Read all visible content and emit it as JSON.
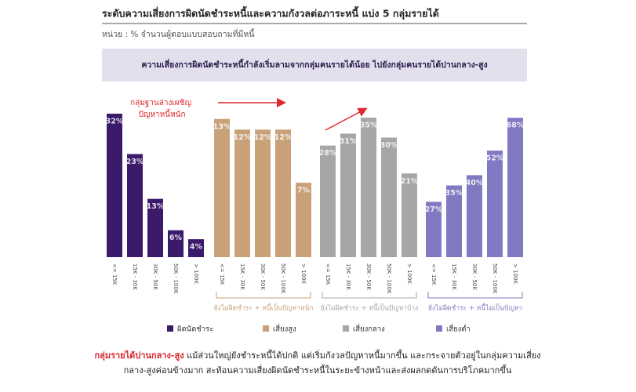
{
  "header": {
    "title": "ระดับความเสี่ยงการผิดนัดชำระหนี้และความกังวลต่อภาระหนี้  แบ่ง 5 กลุ่มรายได้",
    "unit": "หน่วย : % จำนวนผู้ตอบแบบสอบถามที่มีหนี้",
    "banner": "ความเสี่ยงการผิดนัดชำระหนี้กำลังเริ่มลามจากกลุ่มคนรายได้น้อย ไปยังกลุ่มคนรายได้ปานกลาง-สูง"
  },
  "chart_data": [
    {
      "type": "bar",
      "name": "ผิดนัดชำระ",
      "color": "#3b1a6b",
      "categories": [
        "<= 15K",
        "15K - 30K",
        "30K - 50K",
        "50K - 100K",
        "> 100K"
      ],
      "values": [
        32,
        23,
        13,
        6,
        4
      ],
      "value_labels": [
        "32%",
        "23%",
        "13%",
        "6%",
        "4%"
      ],
      "ylim": [
        0,
        32
      ],
      "annotation": "กลุ่มฐานล่างเผชิญ ปัญหาหนี้หนัก"
    },
    {
      "type": "bar",
      "name": "เสี่ยงสูง",
      "color": "#c9a179",
      "categories": [
        "<= 15K",
        "15K - 30K",
        "30K - 50K",
        "50K - 100K",
        "> 100K"
      ],
      "values": [
        13,
        12,
        12,
        12,
        7
      ],
      "value_labels": [
        "13%",
        "12%",
        "12%",
        "12%",
        "7%"
      ],
      "ylim": [
        0,
        13.5
      ],
      "bracket_label": "ยังไม่ผิดชำระ + หนี้เป็นปัญหาหนัก"
    },
    {
      "type": "bar",
      "name": "เสี่ยงกลาง",
      "color": "#a6a6a6",
      "categories": [
        "<= 15K",
        "15K - 30K",
        "30K - 50K",
        "50K - 100K",
        "> 100K"
      ],
      "values": [
        28,
        31,
        35,
        30,
        21
      ],
      "value_labels": [
        "28%",
        "31%",
        "35%",
        "30%",
        "21%"
      ],
      "ylim": [
        0,
        36
      ],
      "bracket_label": "ยังไม่ผิดชำระ + หนี้เป็นปัญหาบ้าง"
    },
    {
      "type": "bar",
      "name": "เสี่ยงต่ำ",
      "color": "#8179c2",
      "categories": [
        "<= 15K",
        "15K - 30K",
        "30K - 50K",
        "50K - 100K",
        "> 100K"
      ],
      "values": [
        27,
        35,
        40,
        52,
        68
      ],
      "value_labels": [
        "27%",
        "35%",
        "40%",
        "52%",
        "68%"
      ],
      "ylim": [
        0,
        70
      ],
      "bracket_label": "ยังไม่ผิดชำระ + หนี้ไม่เป็นปัญหา"
    }
  ],
  "footer": {
    "highlight": "กลุ่มรายได้ปานกลาง-สูง",
    "text": " แม้ส่วนใหญ่ยังชำระหนี้ได้ปกติ แต่เริ่มกังวลปัญหาหนี้มากขึ้น และกระจายตัวอยู่ในกลุ่มความเสี่ยงกลาง-สูงค่อนข้างมาก สะท้อนความเสี่ยงผิดนัดชำระหนี้ในระยะข้างหน้าและส่งผลกดดันการบริโภคมากขึ้น"
  }
}
